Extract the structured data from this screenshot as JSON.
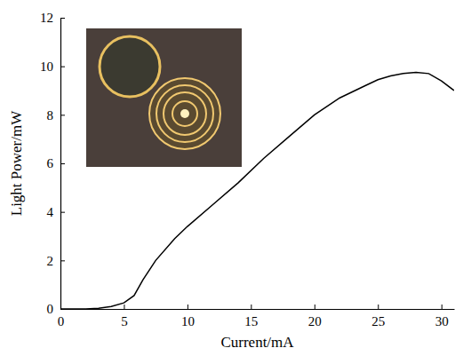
{
  "chart_data": {
    "type": "line",
    "x": [
      0,
      2,
      3,
      4,
      5,
      5.8,
      6.5,
      7.5,
      9,
      10,
      12,
      14,
      16,
      18,
      20,
      22,
      24,
      25,
      26,
      27,
      28,
      29,
      30,
      31
    ],
    "values": [
      0,
      0,
      0.03,
      0.1,
      0.25,
      0.55,
      1.2,
      2.0,
      2.9,
      3.4,
      4.3,
      5.2,
      6.2,
      7.1,
      8.0,
      8.7,
      9.2,
      9.45,
      9.6,
      9.7,
      9.75,
      9.7,
      9.4,
      9.0
    ],
    "color": "#000000",
    "xlabel": "Current/mA",
    "ylabel": "Light Power/mW",
    "xlim": [
      0,
      31
    ],
    "ylim": [
      0,
      12
    ],
    "xticks": [
      0,
      5,
      10,
      15,
      20,
      25,
      30
    ],
    "yticks": [
      0,
      2,
      4,
      6,
      8,
      10,
      12
    ]
  }
}
